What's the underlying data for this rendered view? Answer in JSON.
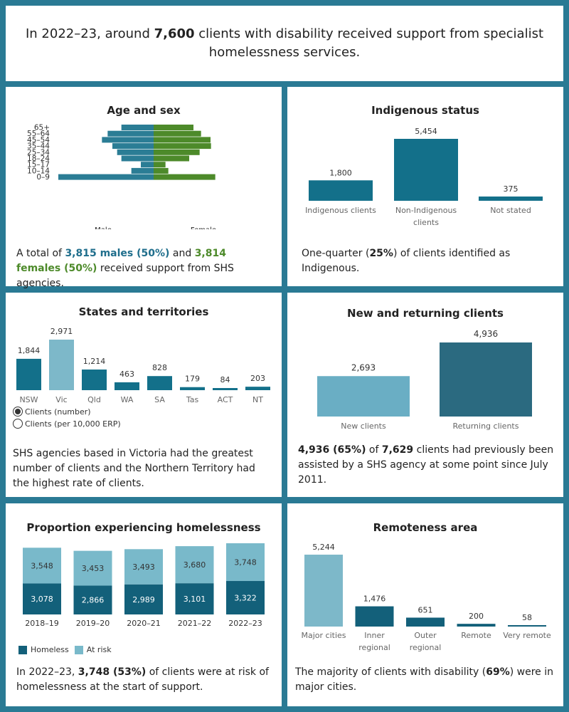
{
  "header": {
    "pre": "In 2022–23, around ",
    "bold": "7,600",
    "post": " clients with disability received support from specialist homelessness services."
  },
  "colors": {
    "background": "#2a7a94",
    "male": "#2b7d95",
    "female": "#4d8a2a",
    "indigenous": "#13708a",
    "state": "#13708a",
    "state_vic": "#7db8c9",
    "new": "#6aaec4",
    "returning": "#2b6a80",
    "homeless": "#13607a",
    "at_risk": "#79b9ca",
    "remote_major": "#7db8c9",
    "remote_other": "#13607a"
  },
  "age_sex": {
    "title": "Age and sex",
    "male_label": "Male",
    "female_label": "Female",
    "summary": {
      "pre": "A total of ",
      "male": "3,815 males (50%)",
      "mid": " and ",
      "female": "3,814 females (50%)",
      "post": " received support from SHS agencies."
    }
  },
  "indigenous": {
    "title": "Indigenous status",
    "summary": {
      "pre": "One-quarter (",
      "bold": "25%",
      "post": ") of clients identified as Indigenous."
    }
  },
  "states": {
    "title": "States and territories",
    "options": [
      "Clients (number)",
      "Clients (per 10,000 ERP)"
    ],
    "selected": "Clients (number)",
    "summary": "SHS agencies based in Victoria had the greatest number of clients and the Northern Territory had the highest rate of clients."
  },
  "new_returning": {
    "title": "New and returning clients",
    "summary": {
      "bold1": "4,936 (65%)",
      "mid": " of ",
      "bold2": "7,629",
      "post": " clients had previously been assisted by a SHS agency at some point since July 2011."
    }
  },
  "homelessness": {
    "title": "Proportion experiencing homelessness",
    "summary": {
      "pre": "In 2022–23, ",
      "bold": "3,748 (53%)",
      "post": " of clients were at risk of homelessness at the start of support."
    }
  },
  "remoteness": {
    "title": "Remoteness area",
    "summary": {
      "pre": "The majority of clients with disability (",
      "bold": "69%",
      "post": ") were in major cities."
    }
  },
  "chart_data": [
    {
      "type": "bar",
      "id": "age_sex",
      "title": "Age and sex",
      "categories": [
        "65+",
        "55–64",
        "45–54",
        "35–44",
        "25–34",
        "18–24",
        "15–17",
        "10–14",
        "0–9"
      ],
      "series": [
        {
          "name": "Male",
          "values": [
            340,
            485,
            545,
            435,
            385,
            340,
            135,
            235,
            1005
          ]
        },
        {
          "name": "Female",
          "values": [
            420,
            500,
            600,
            605,
            485,
            375,
            125,
            155,
            650
          ]
        }
      ]
    },
    {
      "type": "bar",
      "id": "indigenous",
      "title": "Indigenous status",
      "categories": [
        "Indigenous clients",
        "Non-Indigenous clients",
        "Not stated"
      ],
      "values": [
        1800,
        5454,
        375
      ],
      "labels": [
        "1,800",
        "5,454",
        "375"
      ]
    },
    {
      "type": "bar",
      "id": "states",
      "title": "States and territories",
      "categories": [
        "NSW",
        "Vic",
        "Qld",
        "WA",
        "SA",
        "Tas",
        "ACT",
        "NT"
      ],
      "values": [
        1844,
        2971,
        1214,
        463,
        828,
        179,
        84,
        203
      ],
      "labels": [
        "1,844",
        "2,971",
        "1,214",
        "463",
        "828",
        "179",
        "84",
        "203"
      ]
    },
    {
      "type": "bar",
      "id": "new_returning",
      "title": "New and returning clients",
      "categories": [
        "New clients",
        "Returning clients"
      ],
      "values": [
        2693,
        4936
      ],
      "labels": [
        "2,693",
        "4,936"
      ]
    },
    {
      "type": "bar",
      "id": "homelessness",
      "title": "Proportion experiencing homelessness",
      "stacked": true,
      "categories": [
        "2018–19",
        "2019–20",
        "2020–21",
        "2021–22",
        "2022–23"
      ],
      "series": [
        {
          "name": "Homeless",
          "values": [
            3078,
            2866,
            2989,
            3101,
            3322
          ],
          "labels": [
            "3,078",
            "2,866",
            "2,989",
            "3,101",
            "3,322"
          ]
        },
        {
          "name": "At risk",
          "values": [
            3548,
            3453,
            3493,
            3680,
            3748
          ],
          "labels": [
            "3,548",
            "3,453",
            "3,493",
            "3,680",
            "3,748"
          ]
        }
      ]
    },
    {
      "type": "bar",
      "id": "remoteness",
      "title": "Remoteness area",
      "categories": [
        "Major cities",
        "Inner regional",
        "Outer regional",
        "Remote",
        "Very remote"
      ],
      "values": [
        5244,
        1476,
        651,
        200,
        58
      ],
      "labels": [
        "5,244",
        "1,476",
        "651",
        "200",
        "58"
      ]
    }
  ]
}
